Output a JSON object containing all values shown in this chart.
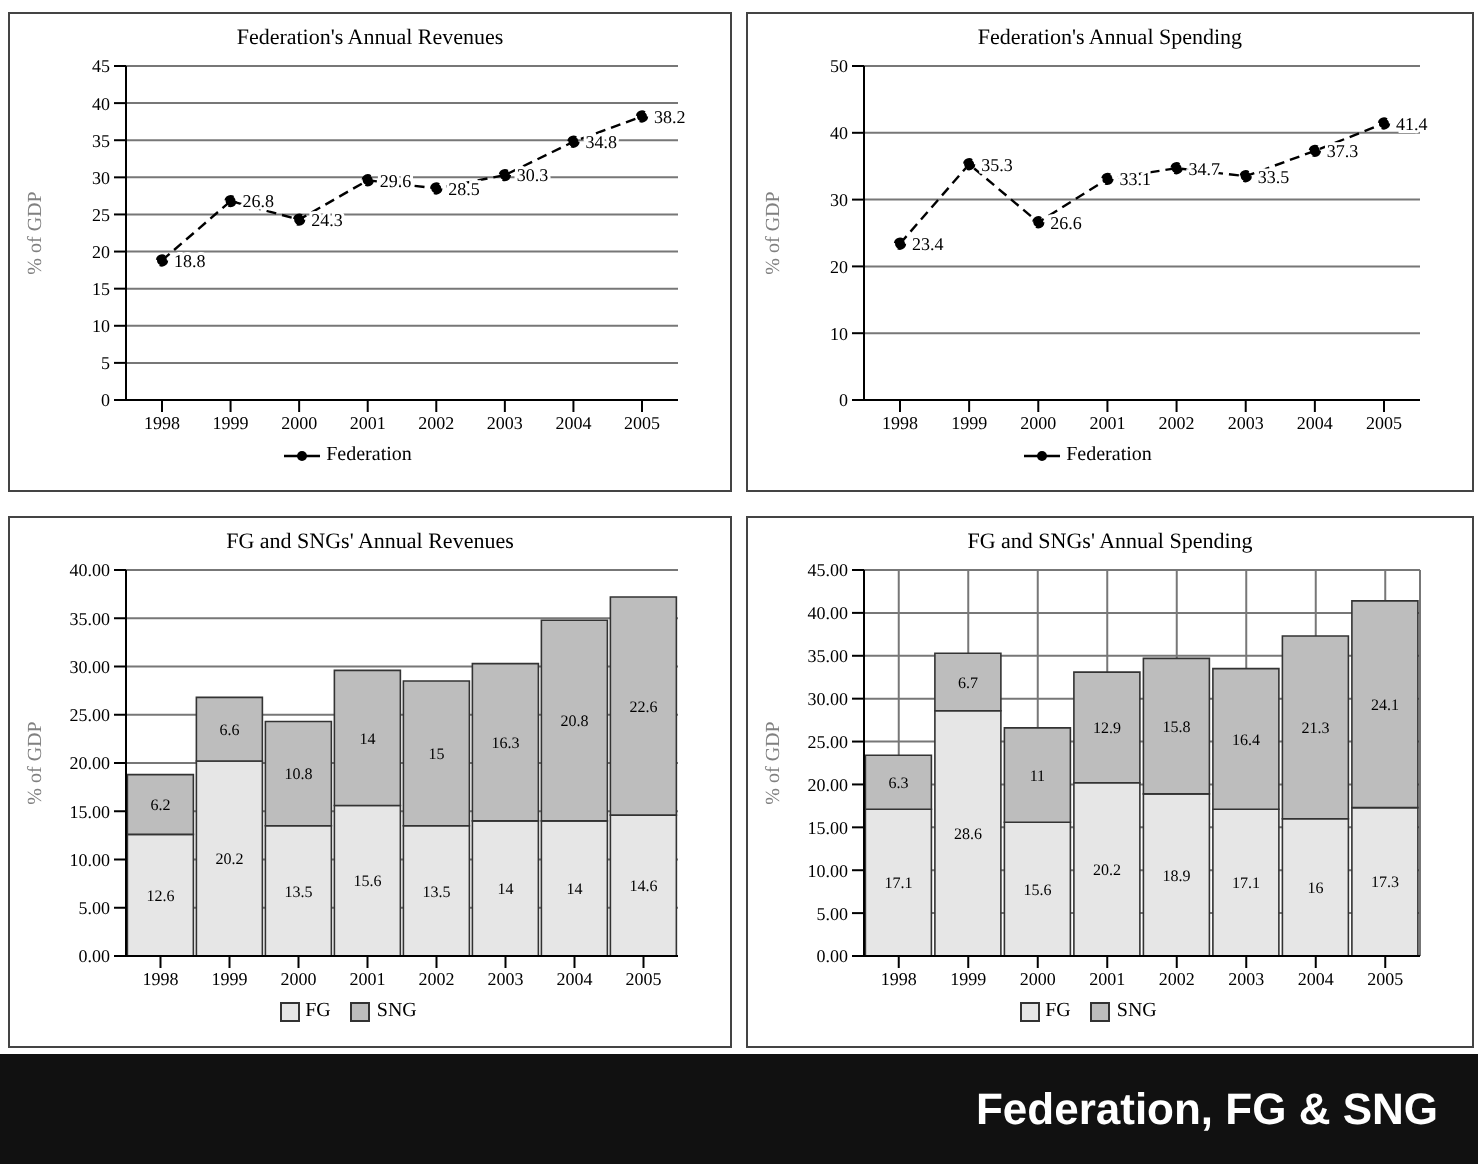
{
  "chart_data": [
    {
      "type": "line",
      "title": "Federation's Annual Revenues",
      "ylabel": "% of GDP",
      "categories": [
        "1998",
        "1999",
        "2000",
        "2001",
        "2002",
        "2003",
        "2004",
        "2005"
      ],
      "series": [
        {
          "name": "Federation",
          "color": "#000000",
          "values": [
            18.8,
            26.8,
            24.3,
            29.6,
            28.5,
            30.3,
            34.8,
            38.2
          ]
        }
      ],
      "ylim": [
        0,
        45
      ],
      "yticks": [
        0,
        5,
        10,
        15,
        20,
        25,
        30,
        35,
        40,
        45
      ],
      "grid": "y",
      "legend": "bottom",
      "marker": "circle",
      "line_style": "dashed",
      "data_labels": true
    },
    {
      "type": "line",
      "title": "Federation's Annual Spending",
      "ylabel": "% of GDP",
      "categories": [
        "1998",
        "1999",
        "2000",
        "2001",
        "2002",
        "2003",
        "2004",
        "2005"
      ],
      "series": [
        {
          "name": "Federation",
          "color": "#000000",
          "values": [
            23.4,
            35.3,
            26.6,
            33.1,
            34.7,
            33.5,
            37.3,
            41.4
          ]
        }
      ],
      "ylim": [
        0,
        50
      ],
      "yticks": [
        0,
        10,
        20,
        30,
        40,
        50
      ],
      "grid": "y",
      "legend": "bottom",
      "marker": "circle",
      "line_style": "dashed",
      "data_labels": true
    },
    {
      "type": "bar",
      "stacked": true,
      "title": "FG and SNGs' Annual Revenues",
      "ylabel": "% of GDP",
      "categories": [
        "1998",
        "1999",
        "2000",
        "2001",
        "2002",
        "2003",
        "2004",
        "2005"
      ],
      "series": [
        {
          "name": "FG",
          "color": "#e6e6e6",
          "values": [
            12.6,
            20.2,
            13.5,
            15.6,
            13.5,
            14.0,
            14.0,
            14.6
          ]
        },
        {
          "name": "SNG",
          "color": "#bdbdbd",
          "values": [
            6.2,
            6.6,
            10.8,
            14.0,
            15.0,
            16.3,
            20.8,
            22.6
          ]
        }
      ],
      "ylim": [
        0,
        40
      ],
      "yticks": [
        {
          "value": 0,
          "label": "0.00"
        },
        {
          "value": 5,
          "label": "5.00"
        },
        {
          "value": 10,
          "label": "10.00"
        },
        {
          "value": 15,
          "label": "15.00"
        },
        {
          "value": 20,
          "label": "20.00"
        },
        {
          "value": 25,
          "label": "25.00"
        },
        {
          "value": 30,
          "label": "30.00"
        },
        {
          "value": 35,
          "label": "35.00"
        },
        {
          "value": 40,
          "label": "40.00"
        }
      ],
      "grid": "y",
      "legend": "bottom",
      "data_labels": true
    },
    {
      "type": "bar",
      "stacked": true,
      "title": "FG and SNGs' Annual Spending",
      "ylabel": "% of GDP",
      "categories": [
        "1998",
        "1999",
        "2000",
        "2001",
        "2002",
        "2003",
        "2004",
        "2005"
      ],
      "series": [
        {
          "name": "FG",
          "color": "#e6e6e6",
          "values": [
            17.1,
            28.6,
            15.6,
            20.2,
            18.9,
            17.1,
            16.0,
            17.3
          ]
        },
        {
          "name": "SNG",
          "color": "#bdbdbd",
          "values": [
            6.3,
            6.7,
            11.0,
            12.9,
            15.8,
            16.4,
            21.3,
            24.1
          ]
        }
      ],
      "ylim": [
        0,
        45
      ],
      "yticks": [
        {
          "value": 0,
          "label": "0.00"
        },
        {
          "value": 5,
          "label": "5.00"
        },
        {
          "value": 10,
          "label": "10.00"
        },
        {
          "value": 15,
          "label": "15.00"
        },
        {
          "value": 20,
          "label": "20.00"
        },
        {
          "value": 25,
          "label": "25.00"
        },
        {
          "value": 30,
          "label": "30.00"
        },
        {
          "value": 35,
          "label": "35.00"
        },
        {
          "value": 40,
          "label": "40.00"
        },
        {
          "value": 45,
          "label": "45.00"
        }
      ],
      "grid": true,
      "legend": "bottom",
      "data_labels": true,
      "annotations": [
        "Federation, FG & SNG"
      ]
    }
  ]
}
